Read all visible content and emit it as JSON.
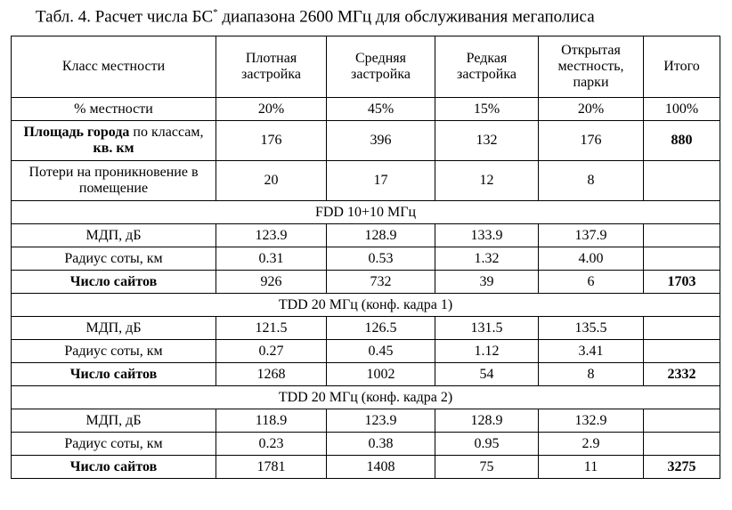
{
  "title": {
    "prefix": "Табл. 4. Расчет числа БС",
    "mark": "*",
    "suffix": " диапазона 2600 МГц для обслуживания мегаполиса"
  },
  "table": {
    "header": [
      "Класс местности",
      "Плотная застройка",
      "Средняя застройка",
      "Редкая застройка",
      "Открытая местность, парки",
      "Итого"
    ],
    "rows": [
      [
        "% местности",
        "20%",
        "45%",
        "15%",
        "20%",
        "100%"
      ],
      [
        [
          "Площадь города",
          " по классам, ",
          "кв. км"
        ],
        "176",
        "396",
        "132",
        "176",
        "880"
      ],
      [
        "Потери на проникновение в помещение",
        "20",
        "17",
        "12",
        "8"
      ]
    ],
    "sections": [
      {
        "title": "FDD 10+10 МГц",
        "rows": [
          [
            "МДП, дБ",
            "123.9",
            "128.9",
            "133.9",
            "137.9"
          ],
          [
            "Радиус соты, км",
            "0.31",
            "0.53",
            "1.32",
            "4.00"
          ],
          [
            "Число сайтов",
            "926",
            "732",
            "39",
            "6",
            "1703"
          ]
        ]
      },
      {
        "title": "TDD 20 МГц (конф. кадра 1)",
        "rows": [
          [
            "МДП, дБ",
            "121.5",
            "126.5",
            "131.5",
            "135.5"
          ],
          [
            "Радиус соты, км",
            "0.27",
            "0.45",
            "1.12",
            "3.41"
          ],
          [
            "Число сайтов",
            "1268",
            "1002",
            "54",
            "8",
            "2332"
          ]
        ]
      },
      {
        "title": "TDD 20 МГц (конф. кадра 2)",
        "rows": [
          [
            "МДП, дБ",
            "118.9",
            "123.9",
            "128.9",
            "132.9"
          ],
          [
            "Радиус соты, км",
            "0.23",
            "0.38",
            "0.95",
            "2.9"
          ],
          [
            "Число сайтов",
            "1781",
            "1408",
            "75",
            "11",
            "3275"
          ]
        ]
      }
    ]
  }
}
